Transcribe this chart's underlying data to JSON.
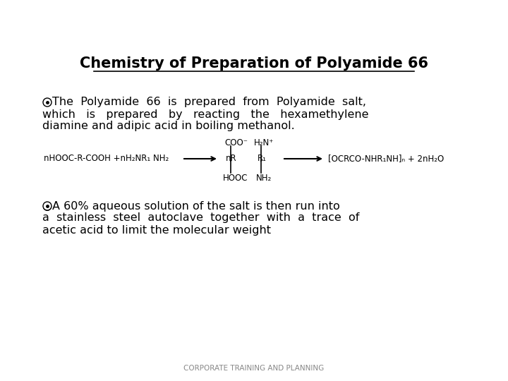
{
  "title": "Chemistry of Preparation of Polyamide 66",
  "bg_color": "#ffffff",
  "title_color": "#000000",
  "title_fontsize": 15,
  "bullet_color": "#555555",
  "text_color": "#000000",
  "footer": "CORPORATE TRAINING AND PLANNING",
  "bullet1_line1": "◉The  Polyamide  66  is  prepared  from  Polyamide  salt,",
  "bullet1_line2": "which   is   prepared   by   reacting   the   hexamethylene",
  "bullet1_line3": "diamine and adipic acid in boiling methanol.",
  "bullet2_line1": "◉A 60% aqueous solution of the salt is then run into",
  "bullet2_line2": "a  stainless  steel  autoclave  together  with  a  trace  of",
  "bullet2_line3": "acetic acid to limit the molecular weight",
  "reaction_left": "nHOOC-R-COOH +nH₂NR₁ NH₂",
  "reaction_mid": "nR",
  "reaction_mid_top": "COO⁻",
  "reaction_mid_bot": "HOOC",
  "reaction_mid2": "R₁",
  "reaction_mid2_top": "H₂N⁺",
  "reaction_mid2_bot": "NH₂",
  "reaction_right": "[OCRCO-NHR₁NH]ₙ + 2nH₂O"
}
